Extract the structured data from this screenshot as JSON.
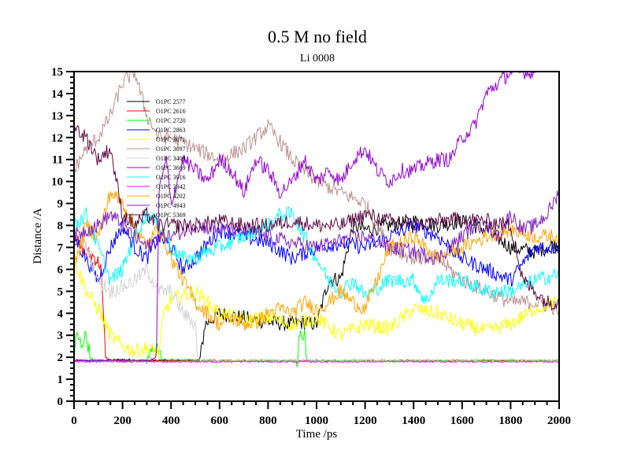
{
  "chart_data": {
    "type": "line",
    "title": "0.5 M no field",
    "subtitle": "Li 0008",
    "xlabel": "Time /ps",
    "ylabel": "Distance /A",
    "xlim": [
      0,
      2000
    ],
    "ylim": [
      0,
      15
    ],
    "x_ticks": [
      "0",
      "200",
      "400",
      "600",
      "800",
      "1000",
      "1200",
      "1400",
      "1600",
      "1800",
      "2000"
    ],
    "y_ticks": [
      "0",
      "1",
      "2",
      "3",
      "4",
      "5",
      "6",
      "7",
      "8",
      "9",
      "10",
      "11",
      "12",
      "13",
      "14",
      "15"
    ],
    "grid": false,
    "legend_position": "top-left",
    "series": [
      {
        "name": "O1PC 2577",
        "color": "#000000",
        "x": [
          0,
          100,
          200,
          300,
          400,
          500,
          520,
          540,
          600,
          700,
          800,
          900,
          950,
          1000,
          1050,
          1100,
          1150,
          1200,
          1300,
          1400,
          1500,
          1600,
          1700,
          1800,
          1900,
          2000
        ],
        "y": [
          1.85,
          1.85,
          1.9,
          1.85,
          1.85,
          1.85,
          1.9,
          3.5,
          4.0,
          3.8,
          3.6,
          3.5,
          3.6,
          3.5,
          5.5,
          5.6,
          8.0,
          7.8,
          8.0,
          8.2,
          8.0,
          8.2,
          7.8,
          7.0,
          6.8,
          7.2
        ]
      },
      {
        "name": "O1PC 2616",
        "color": "#ff0000",
        "x": [
          0,
          40,
          80,
          110,
          130,
          150,
          300,
          600,
          1000,
          1400,
          1800,
          2000
        ],
        "y": [
          7.5,
          6.8,
          6.6,
          6.2,
          2.0,
          1.85,
          1.85,
          1.85,
          1.85,
          1.85,
          1.85,
          1.85
        ]
      },
      {
        "name": "O1PC 2720",
        "color": "#00ff00",
        "x": [
          0,
          10,
          30,
          50,
          70,
          100,
          300,
          340,
          360,
          600,
          920,
          930,
          950,
          960,
          1200,
          1600,
          2000
        ],
        "y": [
          2.0,
          3.0,
          2.6,
          3.0,
          1.9,
          1.85,
          1.85,
          2.6,
          1.9,
          1.85,
          1.85,
          3.2,
          3.1,
          1.85,
          1.85,
          1.85,
          1.85
        ]
      },
      {
        "name": "O1PC 2863",
        "color": "#0000ff",
        "x": [
          0,
          50,
          100,
          150,
          200,
          250,
          300,
          350,
          400,
          450,
          500,
          600,
          700,
          800,
          900,
          1000,
          1100,
          1200,
          1300,
          1400,
          1500,
          1600,
          1700,
          1800,
          1900,
          2000
        ],
        "y": [
          7.5,
          6.5,
          5.5,
          7.0,
          8.0,
          7.0,
          6.5,
          7.5,
          7.0,
          6.0,
          6.5,
          7.8,
          7.5,
          7.2,
          6.5,
          7.0,
          7.2,
          7.0,
          7.5,
          8.0,
          7.5,
          6.5,
          6.0,
          5.5,
          7.0,
          7.0
        ]
      },
      {
        "name": "O1PC 3071",
        "color": "#ffff00",
        "x": [
          0,
          50,
          100,
          150,
          200,
          250,
          300,
          350,
          370,
          400,
          450,
          500,
          550,
          600,
          700,
          800,
          900,
          1000,
          1100,
          1200,
          1300,
          1400,
          1500,
          1600,
          1700,
          1800,
          1900,
          2000
        ],
        "y": [
          6.5,
          5.0,
          4.2,
          3.0,
          2.5,
          2.3,
          2.4,
          2.2,
          4.0,
          4.6,
          4.8,
          5.0,
          4.5,
          4.0,
          3.7,
          3.8,
          3.5,
          3.8,
          3.0,
          3.5,
          3.3,
          4.2,
          4.0,
          3.5,
          3.2,
          3.5,
          4.2,
          4.5
        ]
      },
      {
        "name": "O1PC 3097",
        "color": "#bc8f8f",
        "x": [
          0,
          50,
          100,
          150,
          200,
          250,
          300,
          350,
          400,
          500,
          600,
          700,
          800,
          850,
          900,
          950,
          1000,
          1100,
          1200,
          1250,
          1300,
          1400,
          1500,
          1600,
          1700,
          1800,
          1900,
          2000
        ],
        "y": [
          10.5,
          11.5,
          12.0,
          13.0,
          14.5,
          15.0,
          13.0,
          12.0,
          12.0,
          11.5,
          11.0,
          11.5,
          12.5,
          11.8,
          11.0,
          10.5,
          10.0,
          9.5,
          9.0,
          8.0,
          7.0,
          6.5,
          6.5,
          5.5,
          5.0,
          4.5,
          4.5,
          4.2
        ]
      },
      {
        "name": "O1PC 3409",
        "color": "#d3d3d3",
        "x": [
          0,
          50,
          100,
          150,
          200,
          250,
          300,
          350,
          400,
          450,
          500,
          510,
          520,
          600,
          1000,
          1400,
          1800,
          2000
        ],
        "y": [
          8.5,
          7.0,
          5.5,
          5.0,
          5.2,
          5.5,
          6.0,
          5.0,
          5.0,
          4.0,
          3.5,
          2.0,
          1.85,
          1.85,
          1.85,
          1.85,
          1.9,
          1.85
        ]
      },
      {
        "name": "O1PC 3669",
        "color": "#9400d3",
        "x": [
          0,
          300,
          320,
          340,
          350,
          380,
          400,
          450,
          500,
          550,
          600,
          650,
          700,
          750,
          800,
          850,
          900,
          950,
          1000,
          1050,
          1100,
          1150,
          1200,
          1250,
          1300,
          1350,
          1400,
          1450,
          1500,
          1550,
          1600,
          1650,
          1700,
          1750,
          1800,
          1850,
          1900
        ],
        "y": [
          1.85,
          1.85,
          1.9,
          2.0,
          9.5,
          11.0,
          9.0,
          11.0,
          10.5,
          10.0,
          11.0,
          10.5,
          9.5,
          11.0,
          10.5,
          9.5,
          10.0,
          11.0,
          10.0,
          10.5,
          10.0,
          11.0,
          11.5,
          10.5,
          10.0,
          10.5,
          10.5,
          10.8,
          11.0,
          11.0,
          12.0,
          12.5,
          14.0,
          14.5,
          15.0,
          15.0,
          15.0
        ]
      },
      {
        "name": "O1PC 3916",
        "color": "#00ffff",
        "x": [
          0,
          50,
          100,
          150,
          200,
          250,
          300,
          350,
          400,
          450,
          500,
          550,
          600,
          700,
          800,
          850,
          900,
          950,
          1000,
          1050,
          1100,
          1150,
          1200,
          1300,
          1400,
          1450,
          1500,
          1600,
          1700,
          1800,
          1900,
          2000
        ],
        "y": [
          8.0,
          8.5,
          7.0,
          5.5,
          6.0,
          7.5,
          8.5,
          8.0,
          7.0,
          6.5,
          6.5,
          6.8,
          7.0,
          7.5,
          8.0,
          8.5,
          8.5,
          7.5,
          6.5,
          5.5,
          5.0,
          5.5,
          4.8,
          5.5,
          5.5,
          4.5,
          5.5,
          5.5,
          5.0,
          5.0,
          5.5,
          5.8
        ]
      },
      {
        "name": "O1PC 3942",
        "color": "#ff00ff",
        "x": [
          0,
          200,
          400,
          600,
          800,
          1000,
          1200,
          1400,
          1600,
          1800,
          2000
        ],
        "y": [
          1.8,
          1.8,
          1.8,
          1.8,
          1.8,
          1.8,
          1.8,
          1.8,
          1.8,
          1.8,
          1.8
        ]
      },
      {
        "name": "O1PC 4202",
        "color": "#ffa500",
        "x": [
          0,
          50,
          100,
          150,
          200,
          250,
          300,
          350,
          400,
          450,
          500,
          550,
          600,
          650,
          700,
          750,
          800,
          850,
          900,
          950,
          1000,
          1050,
          1100,
          1150,
          1200,
          1250,
          1300,
          1350,
          1400,
          1450,
          1500,
          1600,
          1700,
          1800,
          1900,
          2000
        ],
        "y": [
          6.0,
          8.0,
          7.5,
          9.5,
          9.0,
          8.0,
          7.0,
          8.0,
          6.5,
          5.5,
          4.5,
          4.0,
          3.5,
          3.8,
          3.5,
          3.6,
          4.0,
          4.2,
          4.0,
          4.5,
          4.2,
          4.5,
          5.0,
          4.5,
          4.2,
          5.5,
          7.0,
          7.2,
          7.5,
          7.0,
          6.5,
          7.0,
          7.5,
          7.8,
          7.5,
          7.5
        ]
      },
      {
        "name": "O1PC 4943",
        "color": "#7f1fbf",
        "x": [
          0,
          50,
          100,
          150,
          200,
          250,
          300,
          350,
          400,
          500,
          600,
          700,
          800,
          900,
          1000,
          1100,
          1200,
          1300,
          1400,
          1500,
          1600,
          1650,
          1700,
          1750,
          1800,
          1850,
          1900,
          1950,
          2000
        ],
        "y": [
          7.5,
          7.8,
          8.0,
          8.5,
          8.0,
          7.5,
          7.0,
          7.5,
          7.5,
          8.0,
          7.8,
          7.8,
          7.5,
          7.2,
          7.0,
          7.3,
          7.5,
          7.0,
          6.8,
          6.5,
          7.5,
          8.0,
          8.0,
          7.5,
          8.5,
          7.8,
          8.0,
          8.5,
          9.5
        ]
      },
      {
        "name": "O1PC 5369",
        "color": "#5c0a44",
        "x": [
          0,
          50,
          100,
          150,
          200,
          250,
          300,
          350,
          400,
          500,
          600,
          700,
          800,
          900,
          1000,
          1100,
          1200,
          1300,
          1400,
          1500,
          1600,
          1700,
          1800,
          1850,
          1900,
          1950,
          2000
        ],
        "y": [
          12.5,
          12.0,
          11.0,
          11.5,
          8.5,
          8.0,
          8.5,
          8.0,
          8.0,
          8.0,
          8.2,
          8.0,
          8.0,
          8.2,
          8.0,
          8.0,
          8.5,
          8.2,
          8.0,
          8.2,
          8.3,
          8.2,
          8.0,
          5.5,
          5.0,
          4.5,
          4.5
        ]
      }
    ]
  }
}
